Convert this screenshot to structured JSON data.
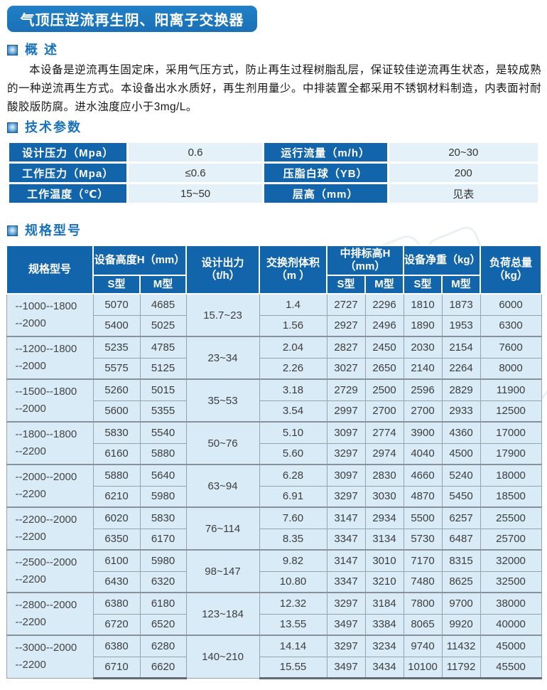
{
  "page": {
    "title": "气顶压逆流再生阴、阳离子交换器"
  },
  "overview": {
    "heading": "概 述",
    "body": "本设备是逆流再生固定床，采用气压方式，防止再生过程树脂乱层，保证较佳逆流再生状态，是较成熟的一种逆流再生方式。本设备出水水质好，再生剂用量少。中排装置全都采用不锈钢材料制造，内表面衬耐酸胶版防腐。进水浊度应小于3mg/L。"
  },
  "tech": {
    "heading": "技术参数",
    "rows": [
      {
        "l1": "设计压力（Mpa）",
        "v1": "0.6",
        "l2": "运行流量（m/h）",
        "v2": "20~30"
      },
      {
        "l1": "工作压力（Mpa）",
        "v1": "≤0.6",
        "l2": "压脂白球（YB）",
        "v2": "200"
      },
      {
        "l1": "工作温度（℃）",
        "v1": "15~50",
        "l2": "层高（mm）",
        "v2": "见表"
      }
    ]
  },
  "specs": {
    "heading": "规格型号",
    "header": {
      "model": "规格型号",
      "height": "设备高度H（mm）",
      "output": "设计出力\n（t/h）",
      "volume": "交换剂体积\n（m ）",
      "mid": "中排标高H\n（mm）",
      "weight": "设备净重（kg）",
      "load": "负荷总量\n（kg）",
      "sub_s": "S型",
      "sub_m": "M型"
    },
    "groups": [
      {
        "model": "--1000--1800\n--2000",
        "output": "15.7~23",
        "rows": [
          [
            "5070",
            "4685",
            "1.4",
            "2727",
            "2296",
            "1810",
            "1873",
            "6000"
          ],
          [
            "5400",
            "5025",
            "1.56",
            "2927",
            "2496",
            "1890",
            "1953",
            "6300"
          ]
        ]
      },
      {
        "model": "--1200--1800\n--2000",
        "output": "23~34",
        "rows": [
          [
            "5235",
            "4785",
            "2.04",
            "2827",
            "2450",
            "2030",
            "2154",
            "7600"
          ],
          [
            "5575",
            "5125",
            "2.26",
            "3027",
            "2650",
            "2140",
            "2264",
            "8000"
          ]
        ]
      },
      {
        "model": "--1500--1800\n--2000",
        "output": "35~53",
        "rows": [
          [
            "5260",
            "5015",
            "3.18",
            "2729",
            "2500",
            "2596",
            "2829",
            "11900"
          ],
          [
            "5600",
            "5355",
            "3.54",
            "2997",
            "2700",
            "2700",
            "2933",
            "12500"
          ]
        ]
      },
      {
        "model": "--1800--1800\n--2200",
        "output": "50~76",
        "rows": [
          [
            "5830",
            "5540",
            "5.10",
            "3097",
            "2774",
            "3900",
            "4360",
            "17000"
          ],
          [
            "6160",
            "5880",
            "5.60",
            "3297",
            "2974",
            "4040",
            "4500",
            "17900"
          ]
        ]
      },
      {
        "model": "--2000--2000\n--2200",
        "output": "63~94",
        "rows": [
          [
            "5880",
            "5640",
            "6.28",
            "3097",
            "2830",
            "4660",
            "5240",
            "18000"
          ],
          [
            "6210",
            "5980",
            "6.91",
            "3297",
            "3030",
            "4870",
            "5450",
            "18500"
          ]
        ]
      },
      {
        "model": "--2200--2000\n--2200",
        "output": "76~114",
        "rows": [
          [
            "6020",
            "5830",
            "7.60",
            "3147",
            "2934",
            "5500",
            "6257",
            "25500"
          ],
          [
            "6350",
            "6170",
            "8.35",
            "3347",
            "3134",
            "5730",
            "6487",
            "25700"
          ]
        ]
      },
      {
        "model": "--2500--2000\n--2200",
        "output": "98~147",
        "rows": [
          [
            "6100",
            "5980",
            "9.82",
            "3147",
            "3010",
            "7170",
            "8315",
            "32000"
          ],
          [
            "6430",
            "6320",
            "10.80",
            "3347",
            "3210",
            "7480",
            "8625",
            "32500"
          ]
        ]
      },
      {
        "model": "--2800--2000\n--2200",
        "output": "123~184",
        "rows": [
          [
            "6380",
            "6180",
            "12.32",
            "3297",
            "3184",
            "7800",
            "9700",
            "38000"
          ],
          [
            "6720",
            "6520",
            "13.55",
            "3497",
            "3384",
            "8065",
            "9920",
            "40000"
          ]
        ]
      },
      {
        "model": "--3000--2000\n--2200",
        "output": "140~210",
        "rows": [
          [
            "6380",
            "6280",
            "14.14",
            "3297",
            "3234",
            "9740",
            "11432",
            "45000"
          ],
          [
            "6710",
            "6620",
            "15.55",
            "3497",
            "3434",
            "10100",
            "11792",
            "45500"
          ]
        ]
      }
    ]
  },
  "colors": {
    "banner_blue": "#1b74bb",
    "header_blue": "#1365ab",
    "cell_blue": "#d9ebf7",
    "value_blue": "#e4f1f9",
    "heading_text_blue": "#1a73ba"
  }
}
